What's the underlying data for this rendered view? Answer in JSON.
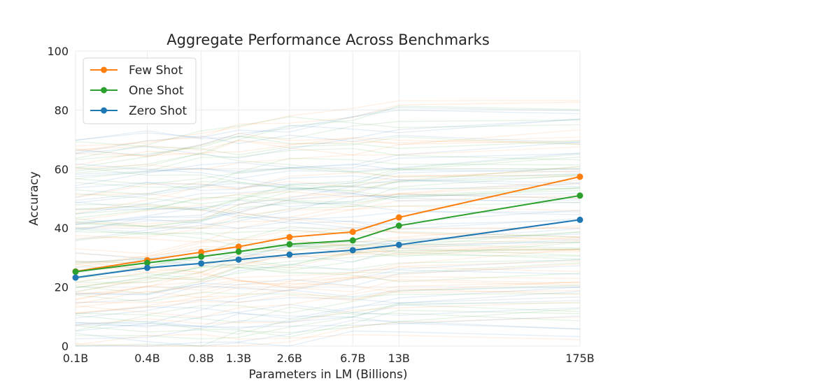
{
  "chart_data": {
    "type": "line",
    "title": "Aggregate Performance Across Benchmarks",
    "xlabel": "Parameters in LM (Billions)",
    "ylabel": "Accuracy",
    "x_tick_labels": [
      "0.1B",
      "0.4B",
      "0.8B",
      "1.3B",
      "2.6B",
      "6.7B",
      "13B",
      "175B"
    ],
    "x_values": [
      0.125,
      0.35,
      0.76,
      1.3,
      2.7,
      6.7,
      13,
      175
    ],
    "x_scale": "log",
    "ylim": [
      0,
      100
    ],
    "y_ticks": [
      0,
      20,
      40,
      60,
      80,
      100
    ],
    "grid": true,
    "legend_position": "top-left",
    "series": [
      {
        "name": "Few Shot",
        "color": "#ff7f0e",
        "values": [
          25.3,
          29.1,
          31.8,
          33.7,
          36.9,
          38.7,
          43.6,
          57.4
        ]
      },
      {
        "name": "One Shot",
        "color": "#2ca02c",
        "values": [
          25.2,
          28.2,
          30.3,
          32.0,
          34.5,
          35.8,
          40.8,
          51.0
        ]
      },
      {
        "name": "Zero Shot",
        "color": "#1f77b4",
        "values": [
          23.2,
          26.5,
          28.0,
          29.3,
          31.0,
          32.5,
          34.3,
          42.8
        ]
      }
    ],
    "background_series_colors": [
      "#ff7f0e",
      "#2ca02c",
      "#1f77b4"
    ]
  }
}
